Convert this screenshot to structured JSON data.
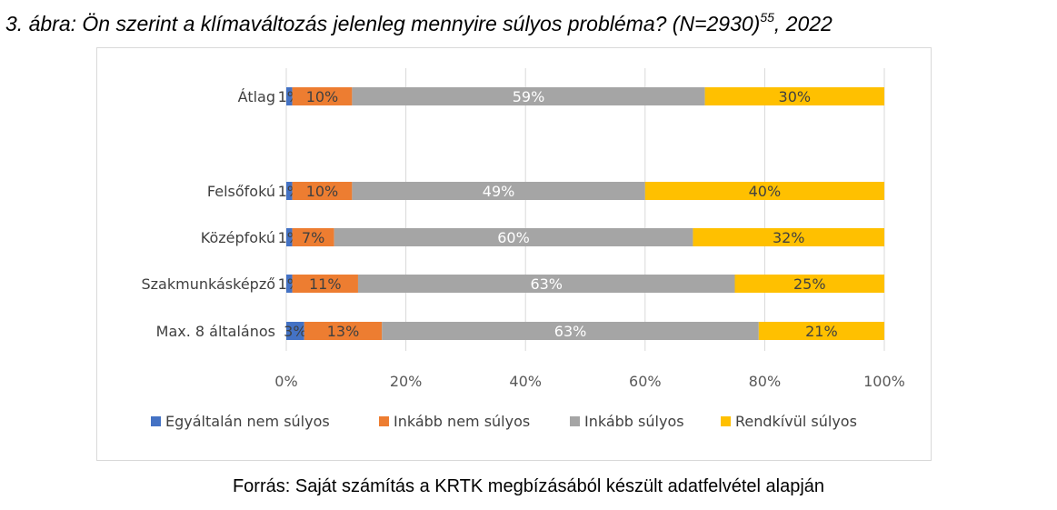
{
  "figure": {
    "title_main": "3. ábra: Ön szerint a klímaváltozás jelenleg mennyire súlyos probléma? (N=2930)",
    "title_sup": "55",
    "title_tail": ", 2022",
    "source": "Forrás: Saját számítás a KRTK megbízásából készült adatfelvétel alapján"
  },
  "chart_data": {
    "type": "bar",
    "orientation": "horizontal",
    "stacked": "percent",
    "categories": [
      "Átlag",
      "Felsőfokú",
      "Középfokú",
      "Szakmunkásképző",
      "Max. 8 általános"
    ],
    "series": [
      {
        "name": "Egyáltalán nem súlyos",
        "color": "#4472c4",
        "label_color": "#404040",
        "values": [
          1,
          1,
          1,
          1,
          3
        ],
        "labels": [
          "1%",
          "1%",
          "1%",
          "1%",
          "3%"
        ]
      },
      {
        "name": "Inkább nem súlyos",
        "color": "#ed7d31",
        "label_color": "#404040",
        "values": [
          10,
          10,
          7,
          11,
          13
        ],
        "labels": [
          "10%",
          "10%",
          "7%",
          "11%",
          "13%"
        ]
      },
      {
        "name": "Inkább súlyos",
        "color": "#a5a5a5",
        "label_color": "#ffffff",
        "values": [
          59,
          49,
          60,
          63,
          63
        ],
        "labels": [
          "59%",
          "49%",
          "60%",
          "63%",
          "63%"
        ]
      },
      {
        "name": "Rendkívül súlyos",
        "color": "#ffc000",
        "label_color": "#404040",
        "values": [
          30,
          40,
          32,
          25,
          21
        ],
        "labels": [
          "30%",
          "40%",
          "32%",
          "25%",
          "21%"
        ]
      }
    ],
    "xlim": [
      0,
      100
    ],
    "x_ticks": [
      "0%",
      "20%",
      "40%",
      "60%",
      "80%",
      "100%"
    ],
    "grid": true,
    "legend_position": "bottom"
  }
}
